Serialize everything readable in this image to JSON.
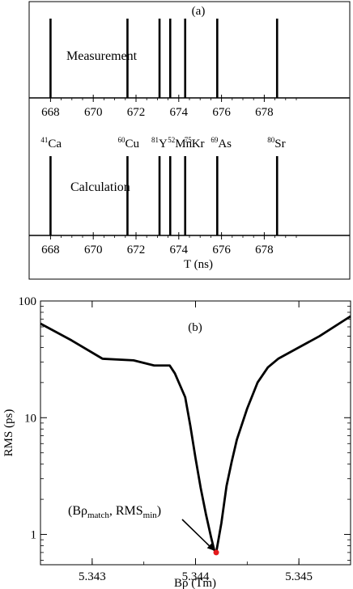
{
  "chart_data": [
    {
      "type": "bar",
      "panel_label": "(a)",
      "xlabel": "",
      "ylabel": "",
      "xlim": [
        667.0,
        682.0
      ],
      "xticks": [
        "668",
        "670",
        "672",
        "674",
        "676",
        "678"
      ],
      "series_label": "Measurement",
      "x": [
        668.0,
        671.6,
        673.1,
        673.6,
        674.3,
        675.8,
        678.6
      ],
      "values": [
        1,
        1,
        1,
        1,
        1,
        1,
        1
      ]
    },
    {
      "type": "bar",
      "xlabel": "T (ns)",
      "ylabel": "",
      "xlim": [
        667.0,
        682.0
      ],
      "xticks": [
        "668",
        "670",
        "672",
        "674",
        "676",
        "678"
      ],
      "series_label": "Calculation",
      "x": [
        668.0,
        671.6,
        673.1,
        673.6,
        674.3,
        675.8,
        678.6
      ],
      "values": [
        1,
        1,
        1,
        1,
        1,
        1,
        1
      ],
      "isotopes": [
        {
          "mass": "41",
          "element": "Ca",
          "x": 668.0
        },
        {
          "mass": "60",
          "element": "Cu",
          "x": 671.6
        },
        {
          "mass": "81",
          "element": "Y",
          "x": 673.1
        },
        {
          "mass": "52",
          "element": "Mn",
          "x": 673.6
        },
        {
          "mass": "75",
          "element": "Kr",
          "x": 674.3
        },
        {
          "mass": "69",
          "element": "As",
          "x": 675.8
        },
        {
          "mass": "80",
          "element": "Sr",
          "x": 678.6
        }
      ]
    },
    {
      "type": "line",
      "panel_label": "(b)",
      "xlabel": "Bρ (Tm)",
      "ylabel": "RMS (ps)",
      "xlim": [
        5.3425,
        5.3455
      ],
      "ylim": [
        0.55,
        100
      ],
      "yscale": "log",
      "xticks": [
        "5.343",
        "5.344",
        "5.345"
      ],
      "yticks": [
        "1",
        "10",
        "100"
      ],
      "x": [
        5.3425,
        5.3428,
        5.3431,
        5.3434,
        5.3436,
        5.34375,
        5.3438,
        5.3439,
        5.34395,
        5.344,
        5.34405,
        5.3441,
        5.34415,
        5.34418,
        5.3442,
        5.34425,
        5.3443,
        5.34435,
        5.3444,
        5.3445,
        5.3446,
        5.3447,
        5.3448,
        5.345,
        5.3452,
        5.3455
      ],
      "y": [
        64,
        46,
        32,
        31,
        28,
        28,
        24,
        15,
        8.5,
        4.5,
        2.5,
        1.5,
        0.95,
        0.74,
        0.7,
        1.25,
        2.6,
        4.2,
        6.5,
        12,
        20,
        27,
        32,
        40,
        50,
        74
      ],
      "annotation": {
        "x": 5.3442,
        "y": 0.7,
        "text_main": "(Bρ",
        "text_sub1": "match",
        "text_mid": ", RMS",
        "text_sub2": "min",
        "text_end": ")"
      },
      "colors": {
        "line": "#000000",
        "marker": "#e41a1c"
      }
    }
  ]
}
